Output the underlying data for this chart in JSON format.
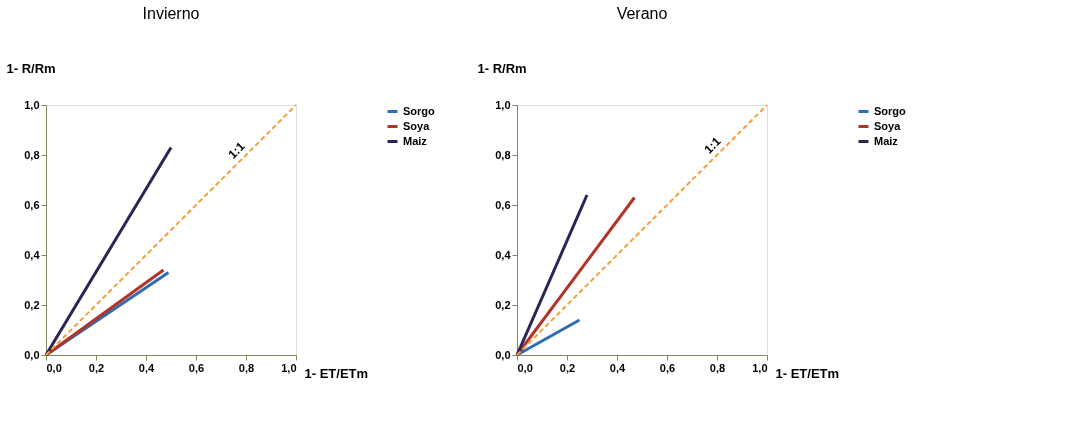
{
  "chart_data": [
    {
      "type": "line",
      "title": "Invierno",
      "xlabel": "1- ET/ETm",
      "ylabel": "1- R/Rm",
      "series": [
        {
          "name": "Sorgo",
          "color": "#2e6db4",
          "x": [
            0,
            0.49
          ],
          "values": [
            0,
            0.33
          ]
        },
        {
          "name": "Soya",
          "color": "#b0342a",
          "x": [
            0,
            0.47
          ],
          "values": [
            0,
            0.34
          ]
        },
        {
          "name": "Maiz",
          "color": "#2c2455",
          "x": [
            0,
            0.5
          ],
          "values": [
            0,
            0.83
          ]
        },
        {
          "color": "#f5a03c",
          "x": [
            0,
            1
          ],
          "values": [
            0,
            1
          ],
          "line_style": "dashed"
        }
      ],
      "annotations": [
        {
          "text": "1:1",
          "x": 0.79,
          "y": 0.79
        }
      ],
      "xlim": [
        0,
        1
      ],
      "ylim": [
        0,
        1
      ],
      "xticks": [
        {
          "value": 0,
          "label": "0,0"
        },
        {
          "value": 0.2,
          "label": "0,2"
        },
        {
          "value": 0.4,
          "label": "0,4"
        },
        {
          "value": 0.6,
          "label": "0,6"
        },
        {
          "value": 0.8,
          "label": "0,8"
        },
        {
          "value": 1,
          "label": "1,0"
        }
      ],
      "yticks": [
        {
          "value": 0,
          "label": "0,0"
        },
        {
          "value": 0.2,
          "label": "0,2"
        },
        {
          "value": 0.4,
          "label": "0,4"
        },
        {
          "value": 0.6,
          "label": "0,6"
        },
        {
          "value": 0.8,
          "label": "0,8"
        },
        {
          "value": 1,
          "label": "1,0"
        }
      ],
      "grid": false,
      "legend": "right",
      "line_style": "solid"
    },
    {
      "type": "line",
      "title": "Verano",
      "xlabel": "1- ET/ETm",
      "ylabel": "1- R/Rm",
      "series": [
        {
          "name": "Sorgo",
          "color": "#2e6db4",
          "x": [
            0,
            0.25
          ],
          "values": [
            0,
            0.14
          ]
        },
        {
          "name": "Soya",
          "color": "#b0342a",
          "x": [
            0,
            0.47
          ],
          "values": [
            0,
            0.63
          ]
        },
        {
          "name": "Maiz",
          "color": "#2c2455",
          "x": [
            0,
            0.28
          ],
          "values": [
            0,
            0.64
          ]
        },
        {
          "color": "#f5a03c",
          "x": [
            0,
            1
          ],
          "values": [
            0,
            1
          ],
          "line_style": "dashed"
        }
      ],
      "annotations": [
        {
          "text": "1:1",
          "x": 0.81,
          "y": 0.81
        }
      ],
      "xlim": [
        0,
        1
      ],
      "ylim": [
        0,
        1
      ],
      "xticks": [
        {
          "value": 0,
          "label": "0,0"
        },
        {
          "value": 0.2,
          "label": "0,2"
        },
        {
          "value": 0.4,
          "label": "0,4"
        },
        {
          "value": 0.6,
          "label": "0,6"
        },
        {
          "value": 0.8,
          "label": "0,8"
        },
        {
          "value": 1,
          "label": "1,0"
        }
      ],
      "yticks": [
        {
          "value": 0,
          "label": "0,0"
        },
        {
          "value": 0.2,
          "label": "0,2"
        },
        {
          "value": 0.4,
          "label": "0,4"
        },
        {
          "value": 0.6,
          "label": "0,6"
        },
        {
          "value": 0.8,
          "label": "0,8"
        },
        {
          "value": 1,
          "label": "1,0"
        }
      ],
      "grid": false,
      "legend": "right",
      "line_style": "solid"
    }
  ]
}
